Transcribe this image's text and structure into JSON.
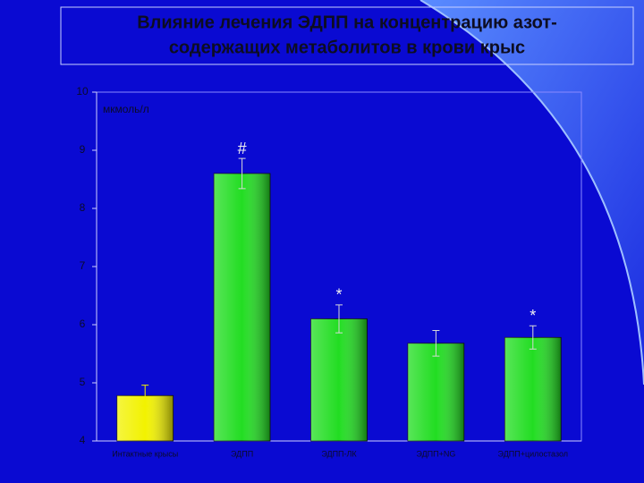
{
  "chart_data": {
    "type": "bar",
    "title": [
      "Влияние лечения ЭДПП на концентрацию азот-",
      "содержащих метаболитов в крови крыс"
    ],
    "unit_label": "мкмоль/л",
    "categories": [
      "Интактные крысы",
      "ЭДПП",
      "ЭДПП-ЛК",
      "ЭДПП+NG",
      "ЭДПП+цилостазол"
    ],
    "values": [
      4.78,
      8.6,
      6.1,
      5.68,
      5.78
    ],
    "errors": [
      0.18,
      0.26,
      0.24,
      0.22,
      0.2
    ],
    "colors": [
      "#f2f200",
      "#22dd22",
      "#22dd22",
      "#22dd22",
      "#22dd22"
    ],
    "annotations": [
      {
        "text": "#",
        "category": "ЭДПП"
      },
      {
        "text": "*",
        "category": "ЭДПП-ЛК"
      },
      {
        "text": "*",
        "category": "ЭДПП+цилостазол"
      }
    ],
    "ylim": [
      4,
      10
    ],
    "yticks": [
      4,
      5,
      6,
      7,
      8,
      9,
      10
    ]
  }
}
